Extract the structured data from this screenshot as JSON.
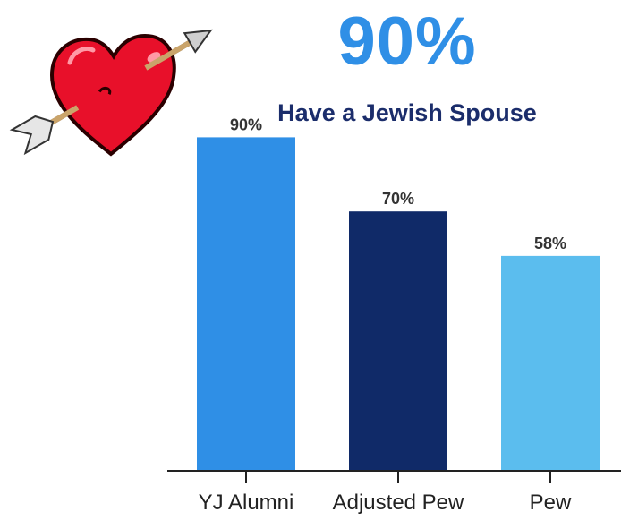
{
  "headline": {
    "text": "90%",
    "color": "#2f8fe6"
  },
  "subtitle": {
    "text": "Have a Jewish Spouse",
    "color": "#1b2d6b"
  },
  "decoration": {
    "icon": "heart-with-arrow-icon"
  },
  "chart_data": {
    "type": "bar",
    "categories": [
      "YJ Alumni",
      "Adjusted Pew",
      "Pew"
    ],
    "values": [
      90,
      70,
      58
    ],
    "data_labels": [
      "90%",
      "70%",
      "58%"
    ],
    "colors": [
      "#2f8fe6",
      "#102a68",
      "#5bbdee"
    ],
    "ylim": [
      0,
      100
    ],
    "grid": false,
    "legend": "none"
  }
}
